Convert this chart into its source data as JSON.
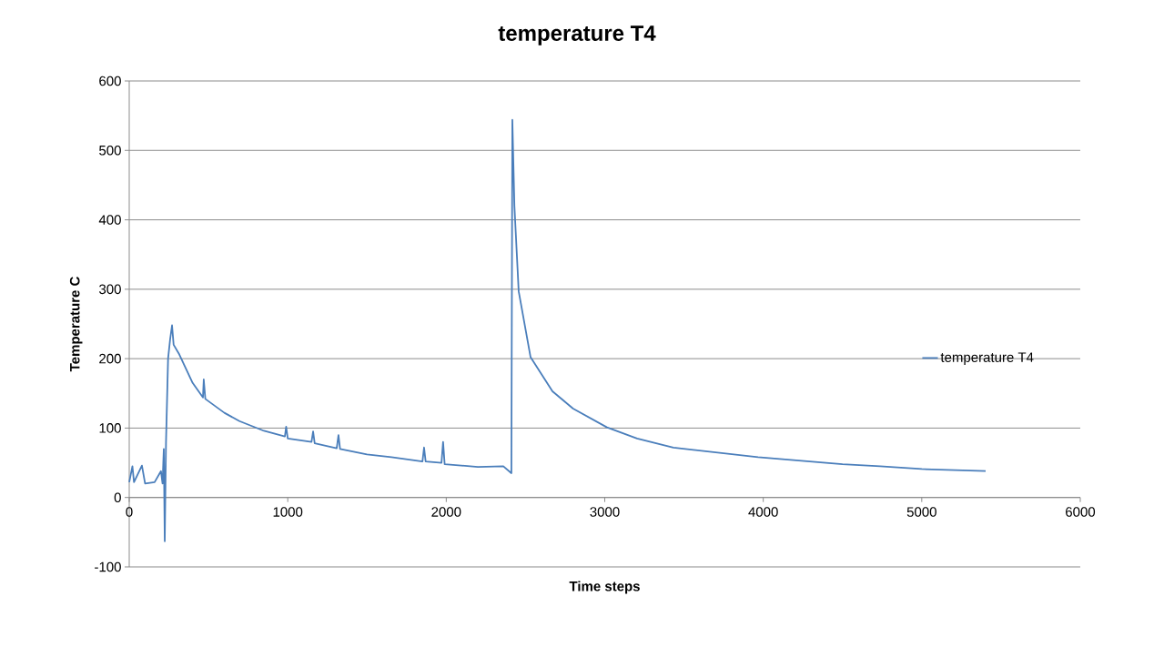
{
  "chart_data": {
    "type": "line",
    "title": "temperature T4",
    "xlabel": "Time steps",
    "ylabel": "Temperature C",
    "xlim": [
      0,
      6000
    ],
    "xticks": [
      0,
      1000,
      2000,
      3000,
      4000,
      5000,
      6000
    ],
    "ylim": [
      -100,
      600
    ],
    "yticks": [
      -100,
      0,
      100,
      200,
      300,
      400,
      500,
      600
    ],
    "grid": "y",
    "legend": "right",
    "marker": "none",
    "line_style": "solid",
    "series": [
      {
        "name": "temperature T4",
        "color": "#4a7ebb",
        "x": [
          0,
          20,
          30,
          80,
          100,
          160,
          200,
          210,
          218,
          224,
          232,
          245,
          258,
          270,
          280,
          316,
          400,
          465,
          470,
          480,
          600,
          695,
          850,
          982,
          990,
          1000,
          1150,
          1160,
          1170,
          1309,
          1320,
          1330,
          1500,
          1654,
          1850,
          1860,
          1870,
          1970,
          1980,
          1990,
          2200,
          2360,
          2411,
          2417,
          2430,
          2457,
          2532,
          2670,
          2800,
          3014,
          3204,
          3433,
          3967,
          4500,
          4737,
          5000,
          5403
        ],
        "values": [
          22,
          45,
          22,
          46,
          20,
          22,
          38,
          20,
          70,
          -63,
          80,
          200,
          228,
          248,
          220,
          206,
          165,
          144,
          170,
          142,
          122,
          110,
          96,
          88,
          102,
          85,
          80,
          95,
          78,
          71,
          90,
          70,
          62,
          58,
          52,
          72,
          52,
          50,
          80,
          48,
          44,
          45,
          35,
          544,
          420,
          297,
          202,
          153,
          128,
          101,
          85,
          72,
          58,
          48,
          45,
          41,
          38
        ]
      }
    ]
  }
}
